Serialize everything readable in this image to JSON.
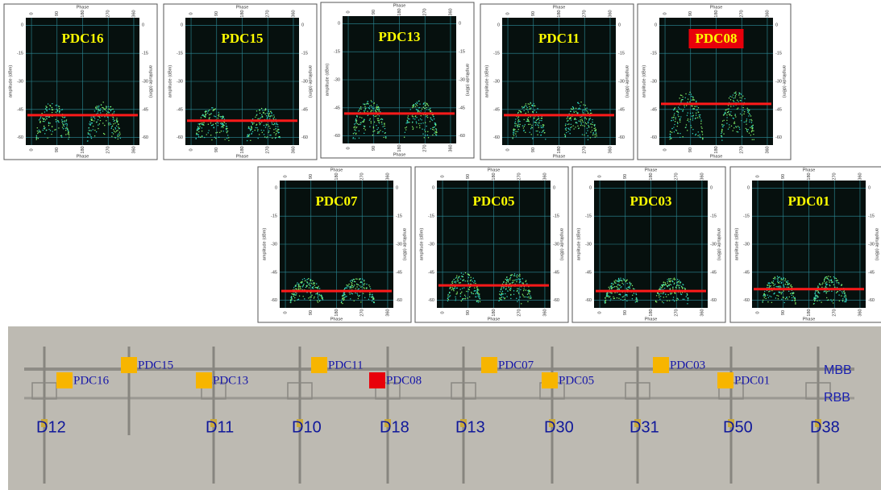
{
  "axes": {
    "x_label": "Phase",
    "y_label": "amplitude (dBm)",
    "xticks": [
      0,
      90,
      180,
      270,
      360
    ],
    "yticks": [
      0,
      -15,
      -30,
      -45,
      -60
    ],
    "xlim": [
      -20,
      380
    ],
    "ylim": [
      -64,
      4
    ]
  },
  "panels": [
    {
      "label": "PDC16",
      "threshold": -48
    },
    {
      "label": "PDC15",
      "threshold": -51
    },
    {
      "label": "PDC13",
      "threshold": -48
    },
    {
      "label": "PDC11",
      "threshold": -48
    },
    {
      "label": "PDC08",
      "threshold": -42,
      "label_background": "#e8000b"
    },
    {
      "label": "PDC07",
      "threshold": -55
    },
    {
      "label": "PDC05",
      "threshold": -52
    },
    {
      "label": "PDC03",
      "threshold": -55
    },
    {
      "label": "PDC01",
      "threshold": -54
    }
  ],
  "schematic": {
    "markers": [
      {
        "label": "PDC16",
        "color": "#f7b500"
      },
      {
        "label": "PDC15",
        "color": "#f7b500"
      },
      {
        "label": "PDC13",
        "color": "#f7b500"
      },
      {
        "label": "PDC11",
        "color": "#f7b500"
      },
      {
        "label": "PDC08",
        "color": "#e8000b"
      },
      {
        "label": "PDC07",
        "color": "#f7b500"
      },
      {
        "label": "PDC05",
        "color": "#f7b500"
      },
      {
        "label": "PDC03",
        "color": "#f7b500"
      },
      {
        "label": "PDC01",
        "color": "#f7b500"
      }
    ],
    "buses": [
      "MBB",
      "RBB"
    ],
    "feeders": [
      "D12",
      "D11",
      "D10",
      "D18",
      "D13",
      "D30",
      "D31",
      "D50",
      "D38"
    ]
  }
}
